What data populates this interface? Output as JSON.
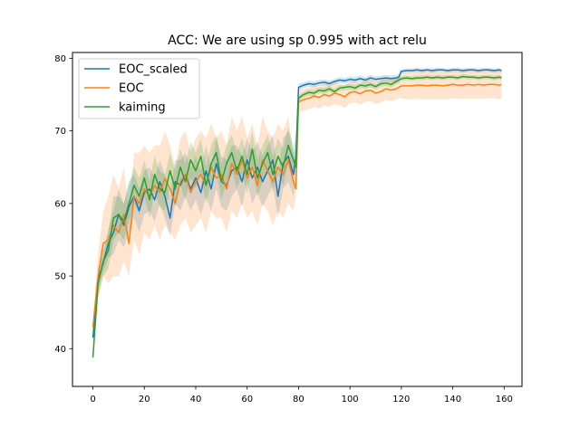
{
  "chart_data": {
    "type": "line",
    "title": "ACC: We are using sp 0.995 with act relu",
    "xlabel": "",
    "ylabel": "",
    "xlim": [
      -7.95,
      166.95
    ],
    "ylim": [
      34.8,
      80.8
    ],
    "xticks": [
      0,
      20,
      40,
      60,
      80,
      100,
      120,
      140,
      160
    ],
    "yticks": [
      40,
      50,
      60,
      70,
      80
    ],
    "grid": false,
    "legend": "upper-left",
    "x": [
      0,
      2,
      4,
      6,
      8,
      10,
      12,
      14,
      16,
      18,
      20,
      22,
      24,
      26,
      28,
      30,
      32,
      34,
      36,
      38,
      40,
      42,
      44,
      46,
      48,
      50,
      52,
      54,
      56,
      58,
      60,
      62,
      64,
      66,
      68,
      70,
      72,
      74,
      76,
      78,
      79,
      80,
      82,
      84,
      86,
      88,
      90,
      92,
      94,
      96,
      98,
      100,
      102,
      104,
      106,
      108,
      110,
      112,
      114,
      116,
      118,
      119,
      120,
      122,
      124,
      126,
      128,
      130,
      132,
      134,
      136,
      138,
      140,
      142,
      144,
      146,
      148,
      150,
      152,
      154,
      156,
      158,
      159
    ],
    "series": [
      {
        "name": "EOC_scaled",
        "color": "#1f77b4",
        "values": [
          41.5,
          49.5,
          51.8,
          54.5,
          56.0,
          58.5,
          57.0,
          59.5,
          61.0,
          59.0,
          61.5,
          62.0,
          60.5,
          63.0,
          61.0,
          58.0,
          63.0,
          62.5,
          64.0,
          62.0,
          63.5,
          61.5,
          64.5,
          62.0,
          65.5,
          63.0,
          62.5,
          64.5,
          65.0,
          63.0,
          66.0,
          63.5,
          65.0,
          63.0,
          64.5,
          66.0,
          61.0,
          65.5,
          66.5,
          64.0,
          66.5,
          76.0,
          76.3,
          76.5,
          76.4,
          76.6,
          76.7,
          76.5,
          76.8,
          77.0,
          76.9,
          77.1,
          77.0,
          77.2,
          77.0,
          77.3,
          77.1,
          77.2,
          77.3,
          77.2,
          77.3,
          77.4,
          78.2,
          78.3,
          78.3,
          78.4,
          78.3,
          78.4,
          78.3,
          78.4,
          78.4,
          78.3,
          78.4,
          78.4,
          78.3,
          78.4,
          78.4,
          78.3,
          78.4,
          78.4,
          78.3,
          78.4,
          78.3
        ],
        "band": [
          [
            41.0,
            48.0,
            50.5,
            52.5,
            53.0,
            55.0,
            54.0,
            56.0,
            58.0,
            56.0,
            58.5,
            59.0,
            57.5,
            60.0,
            58.0,
            55.5,
            60.0,
            59.0,
            61.0,
            59.0,
            60.5,
            58.5,
            61.0,
            59.0,
            62.0,
            59.5,
            59.0,
            61.0,
            62.0,
            59.5,
            63.0,
            60.0,
            61.5,
            59.5,
            61.0,
            62.5,
            58.0,
            62.0,
            63.0,
            61.0,
            63.0,
            75.5,
            75.9,
            76.1,
            76.0,
            76.2,
            76.3,
            76.1,
            76.4,
            76.6,
            76.5,
            76.7,
            76.6,
            76.8,
            76.6,
            76.9,
            76.7,
            76.8,
            76.9,
            76.8,
            76.9,
            77.0,
            77.9,
            78.0,
            78.0,
            78.1,
            78.0,
            78.1,
            78.0,
            78.1,
            78.1,
            78.0,
            78.1,
            78.1,
            78.0,
            78.1,
            78.1,
            78.0,
            78.1,
            78.1,
            78.0,
            78.1,
            78.0
          ],
          [
            42.0,
            51.0,
            53.0,
            56.5,
            59.0,
            62.0,
            60.0,
            63.0,
            64.0,
            62.0,
            64.5,
            65.0,
            63.5,
            66.0,
            64.0,
            61.0,
            66.0,
            66.0,
            67.0,
            65.0,
            66.5,
            64.5,
            68.0,
            65.0,
            69.0,
            66.5,
            66.0,
            68.0,
            68.0,
            66.5,
            69.0,
            67.0,
            68.5,
            66.5,
            68.0,
            69.5,
            64.0,
            69.0,
            70.0,
            67.0,
            70.0,
            76.5,
            76.7,
            76.9,
            76.8,
            77.0,
            77.1,
            76.9,
            77.2,
            77.4,
            77.3,
            77.5,
            77.4,
            77.6,
            77.4,
            77.7,
            77.5,
            77.6,
            77.7,
            77.6,
            77.7,
            77.8,
            78.5,
            78.6,
            78.6,
            78.7,
            78.6,
            78.7,
            78.6,
            78.7,
            78.7,
            78.6,
            78.7,
            78.7,
            78.6,
            78.7,
            78.7,
            78.6,
            78.7,
            78.7,
            78.6,
            78.7,
            78.6
          ]
        ]
      },
      {
        "name": "EOC",
        "color": "#ff7f0e",
        "values": [
          43.0,
          50.0,
          54.5,
          55.0,
          57.0,
          56.0,
          58.5,
          54.5,
          61.0,
          60.0,
          62.0,
          61.0,
          62.5,
          61.5,
          63.5,
          62.0,
          60.0,
          63.0,
          64.0,
          61.5,
          63.0,
          64.0,
          62.5,
          65.0,
          63.5,
          64.0,
          62.0,
          65.5,
          64.0,
          66.0,
          63.5,
          65.0,
          62.5,
          66.0,
          64.5,
          63.0,
          65.0,
          64.0,
          66.0,
          63.0,
          62.0,
          74.0,
          74.3,
          74.5,
          74.8,
          74.6,
          75.0,
          74.8,
          75.2,
          75.0,
          74.7,
          75.3,
          75.4,
          75.1,
          75.5,
          75.6,
          75.2,
          75.4,
          75.8,
          75.6,
          75.8,
          76.0,
          76.2,
          76.2,
          76.2,
          76.3,
          76.3,
          76.2,
          76.3,
          76.3,
          76.2,
          76.3,
          76.4,
          76.3,
          76.3,
          76.4,
          76.3,
          76.4,
          76.3,
          76.4,
          76.4,
          76.3,
          76.4
        ],
        "band": [
          [
            42.0,
            47.0,
            50.0,
            49.0,
            50.0,
            50.0,
            52.0,
            50.0,
            55.0,
            53.0,
            56.0,
            55.0,
            57.0,
            55.0,
            57.0,
            56.0,
            55.0,
            57.0,
            58.0,
            56.0,
            57.0,
            58.0,
            56.0,
            59.0,
            58.0,
            58.0,
            56.0,
            59.0,
            58.0,
            60.0,
            58.0,
            59.0,
            57.0,
            60.0,
            59.0,
            57.0,
            59.0,
            58.0,
            60.0,
            59.0,
            61.0,
            72.5,
            72.8,
            73.0,
            73.3,
            73.1,
            73.5,
            73.3,
            73.7,
            73.5,
            73.2,
            73.8,
            73.9,
            73.6,
            74.0,
            74.1,
            73.7,
            73.9,
            74.3,
            74.1,
            74.3,
            74.5,
            74.5,
            74.4,
            74.3,
            74.4,
            74.4,
            74.3,
            74.4,
            74.4,
            74.3,
            74.4,
            74.5,
            74.4,
            74.4,
            74.5,
            74.4,
            74.5,
            74.4,
            74.5,
            74.5,
            74.4,
            74.5
          ],
          [
            44.0,
            53.0,
            59.0,
            61.0,
            64.0,
            62.0,
            65.0,
            59.0,
            67.0,
            67.0,
            68.0,
            67.0,
            68.0,
            68.0,
            70.0,
            68.0,
            65.0,
            69.0,
            70.0,
            67.0,
            69.0,
            70.0,
            69.0,
            71.0,
            69.0,
            70.0,
            68.0,
            72.0,
            70.0,
            72.0,
            69.0,
            71.0,
            68.0,
            72.0,
            70.0,
            69.0,
            71.0,
            70.0,
            72.0,
            67.0,
            63.0,
            75.5,
            75.8,
            76.0,
            76.3,
            76.1,
            76.5,
            76.3,
            76.7,
            76.5,
            76.2,
            76.8,
            76.9,
            76.6,
            77.0,
            77.1,
            76.7,
            76.9,
            77.3,
            77.1,
            77.3,
            77.5,
            77.9,
            78.0,
            78.1,
            78.2,
            78.2,
            78.1,
            78.2,
            78.2,
            78.1,
            78.2,
            78.3,
            78.2,
            78.2,
            78.3,
            78.2,
            78.3,
            78.2,
            78.3,
            78.3,
            78.2,
            78.3
          ]
        ]
      },
      {
        "name": "kaiming",
        "color": "#2ca02c",
        "values": [
          38.8,
          49.0,
          52.0,
          53.5,
          58.0,
          58.5,
          57.5,
          60.0,
          62.5,
          61.0,
          63.5,
          60.5,
          64.0,
          62.0,
          61.5,
          64.5,
          62.0,
          65.0,
          63.0,
          66.0,
          64.5,
          66.5,
          62.5,
          65.5,
          67.0,
          63.0,
          65.5,
          67.0,
          64.5,
          66.5,
          64.0,
          67.5,
          63.5,
          65.5,
          67.0,
          64.0,
          66.5,
          65.0,
          68.0,
          66.0,
          65.0,
          74.5,
          75.0,
          75.3,
          75.2,
          75.6,
          75.5,
          75.8,
          75.4,
          75.9,
          76.0,
          76.1,
          75.9,
          76.3,
          76.2,
          76.4,
          76.1,
          76.5,
          76.6,
          76.4,
          76.8,
          77.0,
          77.2,
          77.3,
          77.2,
          77.3,
          77.3,
          77.4,
          77.3,
          77.4,
          77.3,
          77.4,
          77.4,
          77.3,
          77.5,
          77.4,
          77.4,
          77.3,
          77.4,
          77.4,
          77.3,
          77.4,
          77.3
        ],
        "band": [
          [
            38.0,
            47.0,
            50.0,
            51.0,
            55.0,
            56.0,
            55.0,
            57.5,
            60.0,
            58.5,
            61.0,
            58.0,
            61.5,
            59.5,
            59.0,
            62.0,
            59.5,
            62.5,
            60.5,
            63.5,
            62.0,
            64.0,
            60.0,
            63.0,
            64.5,
            60.5,
            63.0,
            64.5,
            62.0,
            64.0,
            61.5,
            65.0,
            61.0,
            63.0,
            64.5,
            61.5,
            64.0,
            62.5,
            65.5,
            64.0,
            64.0,
            74.1,
            74.6,
            74.9,
            74.8,
            75.2,
            75.1,
            75.4,
            75.0,
            75.5,
            75.6,
            75.7,
            75.5,
            75.9,
            75.8,
            76.0,
            75.7,
            76.1,
            76.2,
            76.0,
            76.4,
            76.6,
            76.9,
            77.0,
            76.9,
            77.0,
            77.0,
            77.1,
            77.0,
            77.1,
            77.0,
            77.1,
            77.1,
            77.0,
            77.2,
            77.1,
            77.1,
            77.0,
            77.1,
            77.1,
            77.0,
            77.1,
            77.0
          ],
          [
            39.6,
            51.0,
            54.0,
            56.0,
            61.0,
            61.0,
            60.0,
            62.5,
            65.0,
            63.5,
            66.0,
            63.0,
            66.5,
            64.5,
            64.0,
            67.0,
            64.5,
            67.5,
            65.5,
            68.5,
            67.0,
            69.0,
            65.0,
            68.0,
            69.5,
            65.5,
            68.0,
            69.5,
            67.0,
            69.0,
            66.5,
            70.0,
            66.0,
            68.0,
            69.5,
            66.5,
            69.0,
            67.5,
            70.5,
            68.0,
            66.0,
            74.9,
            75.4,
            75.7,
            75.6,
            76.0,
            75.9,
            76.2,
            75.8,
            76.3,
            76.4,
            76.5,
            76.3,
            76.7,
            76.6,
            76.8,
            76.5,
            76.9,
            77.0,
            76.8,
            77.2,
            77.4,
            77.5,
            77.6,
            77.5,
            77.6,
            77.6,
            77.7,
            77.6,
            77.7,
            77.6,
            77.7,
            77.7,
            77.6,
            77.8,
            77.7,
            77.7,
            77.6,
            77.7,
            77.7,
            77.6,
            77.7,
            77.6
          ]
        ]
      }
    ]
  }
}
